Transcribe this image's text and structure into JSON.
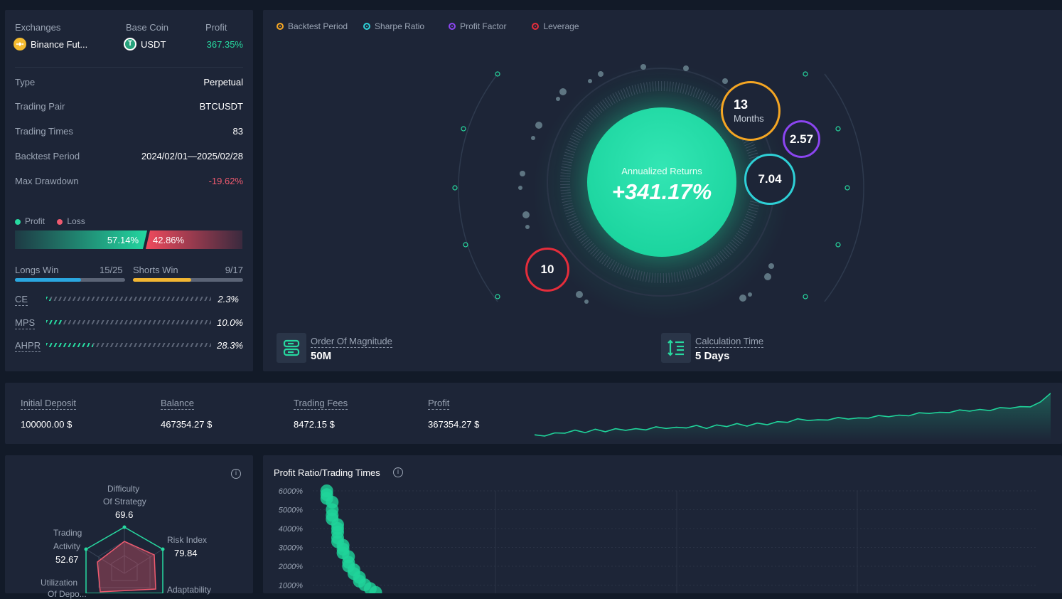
{
  "summary": {
    "exchanges_label": "Exchanges",
    "exchange_value": "Binance Fut...",
    "base_coin_label": "Base Coin",
    "base_coin_value": "USDT",
    "profit_label": "Profit",
    "profit_value": "367.35%",
    "rows": [
      {
        "label": "Type",
        "value": "Perpetual"
      },
      {
        "label": "Trading Pair",
        "value": "BTCUSDT"
      },
      {
        "label": "Trading Times",
        "value": "83"
      },
      {
        "label": "Backtest Period",
        "value": "2024/02/01—2025/02/28"
      },
      {
        "label": "Max Drawdown",
        "value": "-19.62%"
      }
    ],
    "legend_profit": "Profit",
    "legend_loss": "Loss",
    "profit_pct": "57.14%",
    "loss_pct": "42.86%",
    "profit_fraction": 0.5714,
    "longs_label": "Longs Win",
    "longs_value": "15/25",
    "longs_fraction": 0.6,
    "shorts_label": "Shorts Win",
    "shorts_value": "9/17",
    "shorts_fraction": 0.53,
    "metrics": [
      {
        "label": "CE",
        "value": "2.3%",
        "fraction": 0.023
      },
      {
        "label": "MPS",
        "value": "10.0%",
        "fraction": 0.1
      },
      {
        "label": "AHPR",
        "value": "28.3%",
        "fraction": 0.283
      }
    ],
    "colors": {
      "green": "#27d9a0",
      "red": "#ef5a6f",
      "blue": "#2aa7e0",
      "orange": "#f2b632"
    }
  },
  "center": {
    "legend": [
      {
        "label": "Backtest Period",
        "color": "#f5a623"
      },
      {
        "label": "Sharpe Ratio",
        "color": "#2ed0d6"
      },
      {
        "label": "Profit Factor",
        "color": "#8b45f0"
      },
      {
        "label": "Leverage",
        "color": "#e52d3b"
      }
    ],
    "annualized_label": "Annualized Returns",
    "annualized_value": "+341.17%",
    "bubble_months_num": "13",
    "bubble_months_unit": "Months",
    "bubble_profit_factor": "2.57",
    "bubble_sharpe": "7.04",
    "bubble_leverage": "10",
    "magnitude_label": "Order Of Magnitude",
    "magnitude_value": "50M",
    "calc_label": "Calculation Time",
    "calc_value": "5 Days"
  },
  "stats": {
    "items": [
      {
        "label": "Initial Deposit",
        "value": "100000.00 $"
      },
      {
        "label": "Balance",
        "value": "467354.27 $"
      },
      {
        "label": "Trading Fees",
        "value": "8472.15 $"
      },
      {
        "label": "Profit",
        "value": "367354.27 $"
      }
    ],
    "sparkline": [
      0.02,
      0.04,
      0.06,
      0.1,
      0.12,
      0.11,
      0.14,
      0.13,
      0.15,
      0.16,
      0.15,
      0.17,
      0.19,
      0.2,
      0.18,
      0.21,
      0.22,
      0.2,
      0.23,
      0.24,
      0.26,
      0.25,
      0.27,
      0.28,
      0.3,
      0.33,
      0.36,
      0.37,
      0.34,
      0.38,
      0.39,
      0.4,
      0.38,
      0.42,
      0.43,
      0.45,
      0.44,
      0.47,
      0.49,
      0.52,
      0.5,
      0.54,
      0.55,
      0.57,
      0.56,
      0.58,
      0.6,
      0.63,
      0.62,
      0.66,
      0.72,
      0.95
    ]
  },
  "radar": {
    "difficulty_label_1": "Difficulty",
    "difficulty_label_2": "Of Strategy",
    "difficulty_value": "69.6",
    "risk_label": "Risk Index",
    "risk_value": "79.84",
    "trading_label_1": "Trading",
    "trading_label_2": "Activity",
    "trading_value": "52.67",
    "utilization_label_1": "Utilization",
    "utilization_label_2": "Of Depo...",
    "adaptability_label": "Adaptability",
    "info_icon": "info-icon"
  },
  "chart_data": {
    "type": "scatter",
    "title": "Profit Ratio/Trading Times",
    "yticks": [
      "6000%",
      "5000%",
      "4000%",
      "3000%",
      "2000%",
      "1000%"
    ],
    "ylim": [
      0,
      6000
    ],
    "x": [
      1,
      1,
      1,
      2,
      2,
      2,
      2,
      3,
      3,
      3,
      3,
      3,
      4,
      4,
      4,
      5,
      5,
      5,
      6,
      6,
      7,
      7,
      8,
      9,
      10
    ],
    "y": [
      6000,
      5800,
      5600,
      5400,
      5000,
      4700,
      4500,
      4200,
      4000,
      3800,
      3500,
      3300,
      3100,
      2900,
      2700,
      2500,
      2200,
      2000,
      1800,
      1600,
      1400,
      1200,
      1000,
      800,
      600
    ],
    "xlim": [
      0,
      120
    ]
  }
}
